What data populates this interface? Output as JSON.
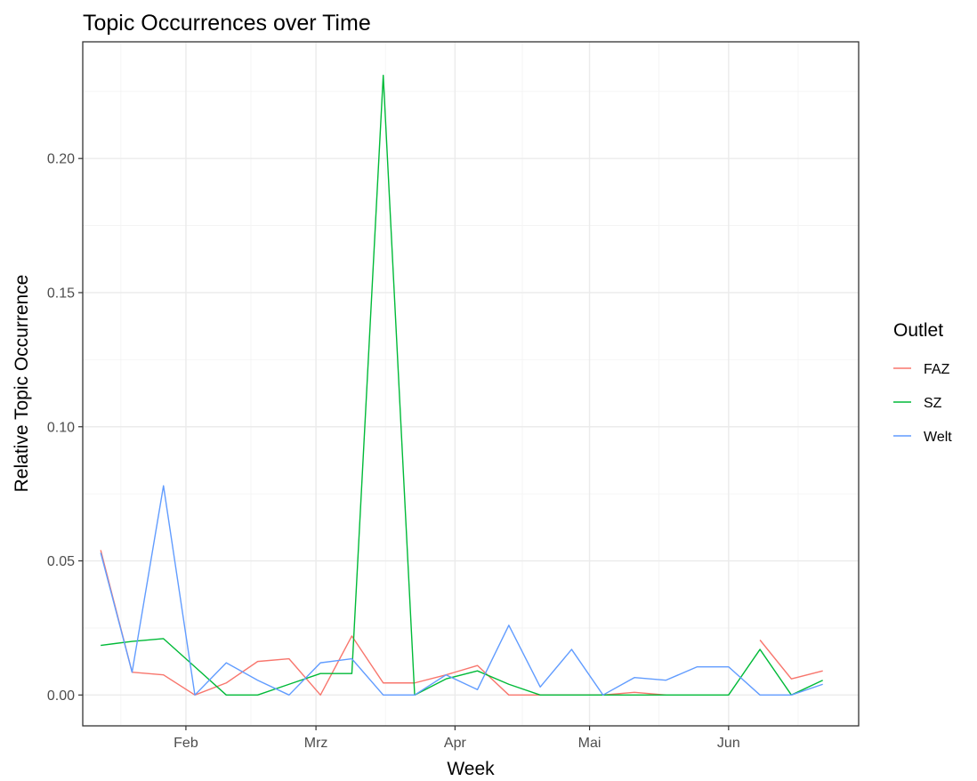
{
  "chart_data": {
    "type": "line",
    "title": "Topic Occurrences over Time",
    "xlabel": "Week",
    "ylabel": "Relative Topic Occurrence",
    "x_ticks": [
      {
        "label": "Feb",
        "date": "2020-02-01"
      },
      {
        "label": "Mrz",
        "date": "2020-03-01"
      },
      {
        "label": "Apr",
        "date": "2020-04-01"
      },
      {
        "label": "Mai",
        "date": "2020-05-01"
      },
      {
        "label": "Jun",
        "date": "2020-06-01"
      }
    ],
    "x_range": [
      "2020-01-09",
      "2020-06-30"
    ],
    "y_ticks": [
      0,
      0.05,
      0.1,
      0.15,
      0.2
    ],
    "y_tick_labels": [
      "0.00",
      "0.05",
      "0.10",
      "0.15",
      "0.20"
    ],
    "ylim": [
      -0.0115,
      0.2435
    ],
    "grid": true,
    "legend": {
      "title": "Outlet",
      "position": "right"
    },
    "x": [
      "2020-01-13",
      "2020-01-20",
      "2020-01-27",
      "2020-02-03",
      "2020-02-10",
      "2020-02-17",
      "2020-02-24",
      "2020-03-02",
      "2020-03-09",
      "2020-03-16",
      "2020-03-23",
      "2020-03-30",
      "2020-04-06",
      "2020-04-13",
      "2020-04-20",
      "2020-04-27",
      "2020-05-04",
      "2020-05-11",
      "2020-05-18",
      "2020-05-25",
      "2020-06-01",
      "2020-06-08",
      "2020-06-15",
      "2020-06-22"
    ],
    "series": [
      {
        "name": "FAZ",
        "color": "#F8766D",
        "values": [
          0.054,
          0.0085,
          0.0075,
          0.0,
          0.0045,
          0.0125,
          0.0135,
          0.0,
          0.022,
          0.0045,
          0.0045,
          0.0075,
          0.011,
          0.0,
          0.0,
          0.0,
          0.0,
          0.001,
          0.0,
          null,
          null,
          0.0205,
          0.006,
          0.009
        ]
      },
      {
        "name": "SZ",
        "color": "#00BA38",
        "values": [
          0.0185,
          0.02,
          0.021,
          0.0105,
          0.0,
          0.0,
          0.004,
          0.008,
          0.008,
          0.231,
          0.0,
          0.006,
          0.009,
          0.004,
          0.0,
          0.0,
          0.0,
          0.0,
          0.0,
          0.0,
          0.0,
          0.017,
          0.0,
          0.0055
        ]
      },
      {
        "name": "Welt",
        "color": "#619CFF",
        "values": [
          0.053,
          0.0085,
          0.078,
          0.0,
          0.012,
          0.0055,
          0.0,
          0.012,
          0.0135,
          0.0,
          0.0,
          0.0075,
          0.002,
          0.026,
          0.003,
          0.017,
          0.0,
          0.0065,
          0.0055,
          0.0105,
          0.0105,
          0.0,
          0.0,
          0.004
        ]
      }
    ]
  }
}
